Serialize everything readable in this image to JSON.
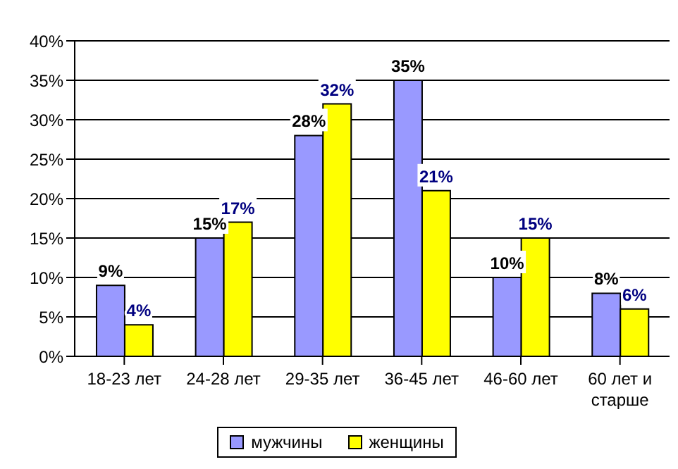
{
  "chart_data": {
    "type": "bar",
    "categories": [
      "18-23 лет",
      "24-28 лет",
      "29-35 лет",
      "36-45 лет",
      "46-60 лет",
      "60 лет и старше"
    ],
    "series": [
      {
        "name": "мужчины",
        "color": "#9999ff",
        "values": [
          9,
          15,
          28,
          35,
          10,
          8
        ],
        "value_labels": [
          "9%",
          "15%",
          "28%",
          "35%",
          "10%",
          "8%"
        ]
      },
      {
        "name": "женщины",
        "color": "#ffff00",
        "values": [
          4,
          17,
          32,
          21,
          15,
          6
        ],
        "value_labels": [
          "4%",
          "17%",
          "32%",
          "21%",
          "15%",
          "6%"
        ]
      }
    ],
    "ylim": [
      0,
      40
    ],
    "yticks": [
      {
        "value": 0,
        "label": "0%"
      },
      {
        "value": 5,
        "label": "5%"
      },
      {
        "value": 10,
        "label": "10%"
      },
      {
        "value": 15,
        "label": "15%"
      },
      {
        "value": 20,
        "label": "20%"
      },
      {
        "value": 25,
        "label": "25%"
      },
      {
        "value": 30,
        "label": "30%"
      },
      {
        "value": 35,
        "label": "35%"
      },
      {
        "value": 40,
        "label": "40%"
      }
    ],
    "grid": "y",
    "legend": "bottom"
  }
}
